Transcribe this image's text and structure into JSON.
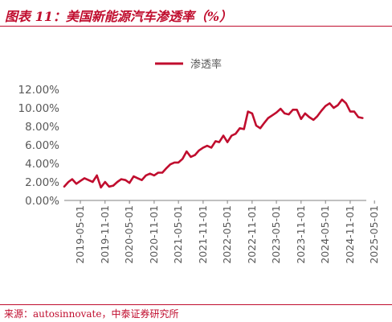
{
  "header": {
    "figure_title": "图表 11：美国新能源汽车渗透率（%）"
  },
  "footer": {
    "source": "来源：autosinnovate，中泰证券研究所"
  },
  "colors": {
    "accent": "#c00d2e",
    "series": "#c00d2e",
    "axis": "#808080",
    "text": "#595959"
  },
  "chart_data": {
    "type": "line",
    "title": "",
    "xlabel": "",
    "ylabel": "",
    "legend": "top-center",
    "grid": false,
    "ylim": [
      0,
      12
    ],
    "yticks": [
      "0.00%",
      "2.00%",
      "4.00%",
      "6.00%",
      "8.00%",
      "10.00%",
      "12.00%"
    ],
    "xticks": [
      "2019-05-01",
      "2019-11-01",
      "2020-05-01",
      "2020-11-01",
      "2021-05-01",
      "2021-11-01",
      "2022-05-01",
      "2022-11-01",
      "2023-05-01",
      "2023-11-01",
      "2024-05-01",
      "2024-11-01",
      "2025-05-01"
    ],
    "series": [
      {
        "name": "渗透率",
        "color": "#c00d2e",
        "points": [
          [
            "2019-01-01",
            1.5
          ],
          [
            "2019-02-01",
            2.0
          ],
          [
            "2019-03-01",
            2.3
          ],
          [
            "2019-04-01",
            1.8
          ],
          [
            "2019-05-01",
            2.1
          ],
          [
            "2019-06-01",
            2.4
          ],
          [
            "2019-07-01",
            2.2
          ],
          [
            "2019-08-01",
            2.0
          ],
          [
            "2019-09-01",
            2.7
          ],
          [
            "2019-10-01",
            1.4
          ],
          [
            "2019-11-01",
            2.0
          ],
          [
            "2019-12-01",
            1.5
          ],
          [
            "2020-01-01",
            1.6
          ],
          [
            "2020-02-01",
            2.0
          ],
          [
            "2020-03-01",
            2.3
          ],
          [
            "2020-04-01",
            2.2
          ],
          [
            "2020-05-01",
            1.9
          ],
          [
            "2020-06-01",
            2.6
          ],
          [
            "2020-07-01",
            2.4
          ],
          [
            "2020-08-01",
            2.2
          ],
          [
            "2020-09-01",
            2.7
          ],
          [
            "2020-10-01",
            2.9
          ],
          [
            "2020-11-01",
            2.7
          ],
          [
            "2020-12-01",
            3.0
          ],
          [
            "2021-01-01",
            3.0
          ],
          [
            "2021-02-01",
            3.5
          ],
          [
            "2021-03-01",
            3.9
          ],
          [
            "2021-04-01",
            4.1
          ],
          [
            "2021-05-01",
            4.1
          ],
          [
            "2021-06-01",
            4.5
          ],
          [
            "2021-07-01",
            5.3
          ],
          [
            "2021-08-01",
            4.7
          ],
          [
            "2021-09-01",
            4.9
          ],
          [
            "2021-10-01",
            5.4
          ],
          [
            "2021-11-01",
            5.7
          ],
          [
            "2021-12-01",
            5.9
          ],
          [
            "2022-01-01",
            5.7
          ],
          [
            "2022-02-01",
            6.4
          ],
          [
            "2022-03-01",
            6.3
          ],
          [
            "2022-04-01",
            7.0
          ],
          [
            "2022-05-01",
            6.3
          ],
          [
            "2022-06-01",
            7.0
          ],
          [
            "2022-07-01",
            7.2
          ],
          [
            "2022-08-01",
            7.8
          ],
          [
            "2022-09-01",
            7.7
          ],
          [
            "2022-10-01",
            9.6
          ],
          [
            "2022-11-01",
            9.4
          ],
          [
            "2022-12-01",
            8.1
          ],
          [
            "2023-01-01",
            7.8
          ],
          [
            "2023-02-01",
            8.4
          ],
          [
            "2023-03-01",
            8.9
          ],
          [
            "2023-04-01",
            9.2
          ],
          [
            "2023-05-01",
            9.5
          ],
          [
            "2023-06-01",
            9.9
          ],
          [
            "2023-07-01",
            9.4
          ],
          [
            "2023-08-01",
            9.3
          ],
          [
            "2023-09-01",
            9.8
          ],
          [
            "2023-10-01",
            9.8
          ],
          [
            "2023-11-01",
            8.8
          ],
          [
            "2023-12-01",
            9.4
          ],
          [
            "2024-01-01",
            9.0
          ],
          [
            "2024-02-01",
            8.7
          ],
          [
            "2024-03-01",
            9.1
          ],
          [
            "2024-04-01",
            9.7
          ],
          [
            "2024-05-01",
            10.2
          ],
          [
            "2024-06-01",
            10.5
          ],
          [
            "2024-07-01",
            10.0
          ],
          [
            "2024-08-01",
            10.3
          ],
          [
            "2024-09-01",
            10.9
          ],
          [
            "2024-10-01",
            10.5
          ],
          [
            "2024-11-01",
            9.6
          ],
          [
            "2024-12-01",
            9.6
          ],
          [
            "2025-01-01",
            9.0
          ],
          [
            "2025-02-01",
            8.9
          ]
        ]
      }
    ]
  }
}
